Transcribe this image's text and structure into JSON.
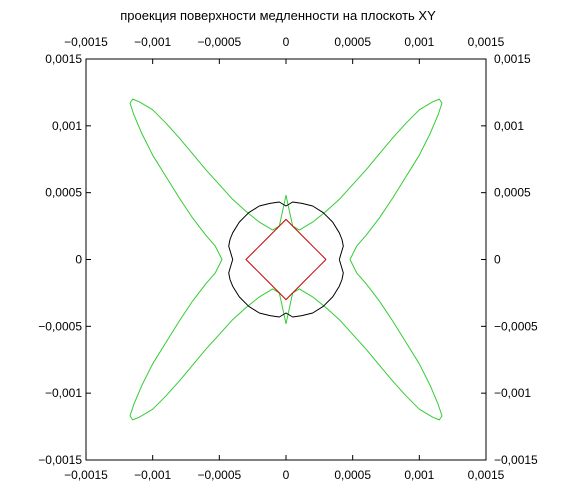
{
  "chart_data": {
    "type": "line",
    "title": "проекция поверхности медленности на плоскоть XY",
    "xlabel": "",
    "ylabel": "",
    "xlim": [
      -0.0015,
      0.0015
    ],
    "ylim": [
      -0.0015,
      0.0015
    ],
    "x_ticks": [
      -0.0015,
      -0.001,
      -0.0005,
      0,
      0.0005,
      0.001,
      0.0015
    ],
    "y_ticks": [
      -0.0015,
      -0.001,
      -0.0005,
      0,
      0.0005,
      0.001,
      0.0015
    ],
    "x_tick_labels": [
      "−0,0015",
      "−0,001",
      "−0,0005",
      "0",
      "0,0005",
      "0,001",
      "0,0015"
    ],
    "y_tick_labels": [
      "−0,0015",
      "−0,001",
      "−0,0005",
      "0",
      "0,0005",
      "0,001",
      "0,0015"
    ],
    "grid": false,
    "legend": "none",
    "series": [
      {
        "color": "#33cc33",
        "x": [
          0.00048,
          0.00053,
          0.0006,
          0.0007,
          0.0008,
          0.0009,
          0.001,
          0.00108,
          0.00114,
          0.00117,
          0.00115,
          0.0011,
          0.001,
          0.0009,
          0.0008,
          0.0007,
          0.0006,
          0.0005,
          0.0004,
          0.0003,
          0.0002,
          0.0001,
          5e-05,
          0.0,
          -5e-05,
          -0.0001,
          -0.0002,
          -0.0003,
          -0.0004,
          -0.0005,
          -0.0006,
          -0.0007,
          -0.0008,
          -0.0009,
          -0.001,
          -0.0011,
          -0.00115,
          -0.00117,
          -0.00114,
          -0.00108,
          -0.001,
          -0.0009,
          -0.0008,
          -0.0007,
          -0.0006,
          -0.00053,
          -0.00048,
          -0.00053,
          -0.0006,
          -0.0007,
          -0.0008,
          -0.0009,
          -0.001,
          -0.00108,
          -0.00114,
          -0.00117,
          -0.00115,
          -0.0011,
          -0.001,
          -0.0009,
          -0.0008,
          -0.0007,
          -0.0006,
          -0.0005,
          -0.0004,
          -0.0003,
          -0.0002,
          -0.0001,
          -5e-05,
          0.0,
          5e-05,
          0.0001,
          0.0002,
          0.0003,
          0.0004,
          0.0005,
          0.0006,
          0.0007,
          0.0008,
          0.0009,
          0.001,
          0.0011,
          0.00115,
          0.00117,
          0.00114,
          0.00108,
          0.001,
          0.0009,
          0.0008,
          0.0007,
          0.0006,
          0.00053,
          0.00048
        ],
        "y": [
          0.0,
          0.0001,
          0.00018,
          0.00031,
          0.00046,
          0.00062,
          0.00078,
          0.00094,
          0.00108,
          0.00117,
          0.0012,
          0.00118,
          0.00112,
          0.00102,
          0.00091,
          0.00079,
          0.00067,
          0.00056,
          0.00045,
          0.00036,
          0.00028,
          0.00022,
          0.00025,
          0.00048,
          0.00025,
          0.00022,
          0.00028,
          0.00036,
          0.00045,
          0.00056,
          0.00067,
          0.00079,
          0.00091,
          0.00102,
          0.00112,
          0.00118,
          0.0012,
          0.00117,
          0.00108,
          0.00094,
          0.00078,
          0.00062,
          0.00046,
          0.00031,
          0.00018,
          0.0001,
          0.0,
          -0.0001,
          -0.00018,
          -0.00031,
          -0.00046,
          -0.00062,
          -0.00078,
          -0.00094,
          -0.00108,
          -0.00117,
          -0.0012,
          -0.00118,
          -0.00112,
          -0.00102,
          -0.00091,
          -0.00079,
          -0.00067,
          -0.00056,
          -0.00045,
          -0.00036,
          -0.00028,
          -0.00022,
          -0.00025,
          -0.00048,
          -0.00025,
          -0.00022,
          -0.00028,
          -0.00036,
          -0.00045,
          -0.00056,
          -0.00067,
          -0.00079,
          -0.00091,
          -0.00102,
          -0.00112,
          -0.00118,
          -0.0012,
          -0.00117,
          -0.00108,
          -0.00094,
          -0.00078,
          -0.00062,
          -0.00046,
          -0.00031,
          -0.00018,
          -0.0001,
          0.0
        ]
      },
      {
        "color": "#000000",
        "x": [
          0.0004,
          0.00043,
          0.00042,
          0.0004,
          0.00035,
          0.00028,
          0.0002,
          0.00012,
          5e-05,
          0.0,
          -5e-05,
          -0.00012,
          -0.0002,
          -0.00028,
          -0.00035,
          -0.0004,
          -0.00042,
          -0.00043,
          -0.0004,
          -0.00043,
          -0.00042,
          -0.0004,
          -0.00035,
          -0.00028,
          -0.0002,
          -0.00012,
          -5e-05,
          0.0,
          5e-05,
          0.00012,
          0.0002,
          0.00028,
          0.00035,
          0.0004,
          0.00042,
          0.00043,
          0.0004
        ],
        "y": [
          0.0,
          0.0001,
          0.00015,
          0.0002,
          0.00028,
          0.00035,
          0.0004,
          0.00042,
          0.00043,
          0.0004,
          0.00043,
          0.00042,
          0.0004,
          0.00035,
          0.00028,
          0.0002,
          0.00015,
          0.0001,
          0.0,
          -0.0001,
          -0.00015,
          -0.0002,
          -0.00028,
          -0.00035,
          -0.0004,
          -0.00042,
          -0.00043,
          -0.0004,
          -0.00043,
          -0.00042,
          -0.0004,
          -0.00035,
          -0.00028,
          -0.0002,
          -0.00015,
          -0.0001,
          0.0
        ]
      },
      {
        "color": "#cc0000",
        "x": [
          0.0003,
          0.00022,
          0.00015,
          8e-05,
          0.0,
          -8e-05,
          -0.00015,
          -0.00022,
          -0.0003,
          -0.00022,
          -0.00015,
          -8e-05,
          0.0,
          8e-05,
          0.00015,
          0.00022,
          0.0003
        ],
        "y": [
          0.0,
          8e-05,
          0.00015,
          0.00022,
          0.0003,
          0.00022,
          0.00015,
          8e-05,
          0.0,
          -8e-05,
          -0.00015,
          -0.00022,
          -0.0003,
          -0.00022,
          -0.00015,
          -8e-05,
          0.0
        ]
      }
    ]
  }
}
